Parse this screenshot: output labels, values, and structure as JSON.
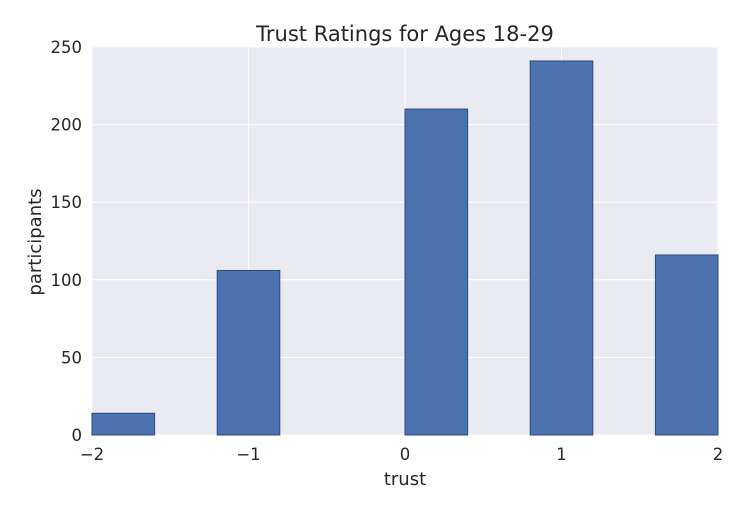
{
  "chart_data": {
    "type": "bar",
    "title": "Trust Ratings for Ages 18-29",
    "xlabel": "trust",
    "ylabel": "participants",
    "xlim": [
      -2,
      2
    ],
    "ylim": [
      0,
      250
    ],
    "x_ticks": [
      -2,
      -1,
      0,
      1,
      2
    ],
    "x_tick_labels": [
      "−2",
      "−1",
      "0",
      "1",
      "2"
    ],
    "y_ticks": [
      0,
      50,
      100,
      150,
      200,
      250
    ],
    "y_tick_labels": [
      "0",
      "50",
      "100",
      "150",
      "200",
      "250"
    ],
    "bars": [
      {
        "x0": -2.0,
        "x1": -1.6,
        "value": 14
      },
      {
        "x0": -1.2,
        "x1": -0.8,
        "value": 106
      },
      {
        "x0": 0.0,
        "x1": 0.4,
        "value": 210
      },
      {
        "x0": 0.8,
        "x1": 1.2,
        "value": 241
      },
      {
        "x0": 1.6,
        "x1": 2.0,
        "value": 116
      }
    ],
    "grid": true,
    "colors": {
      "plot_background": "#EAEAF2",
      "bar_fill": "#4C72B0",
      "bar_edge": "#2E4A7A",
      "grid": "#FFFFFF"
    }
  }
}
